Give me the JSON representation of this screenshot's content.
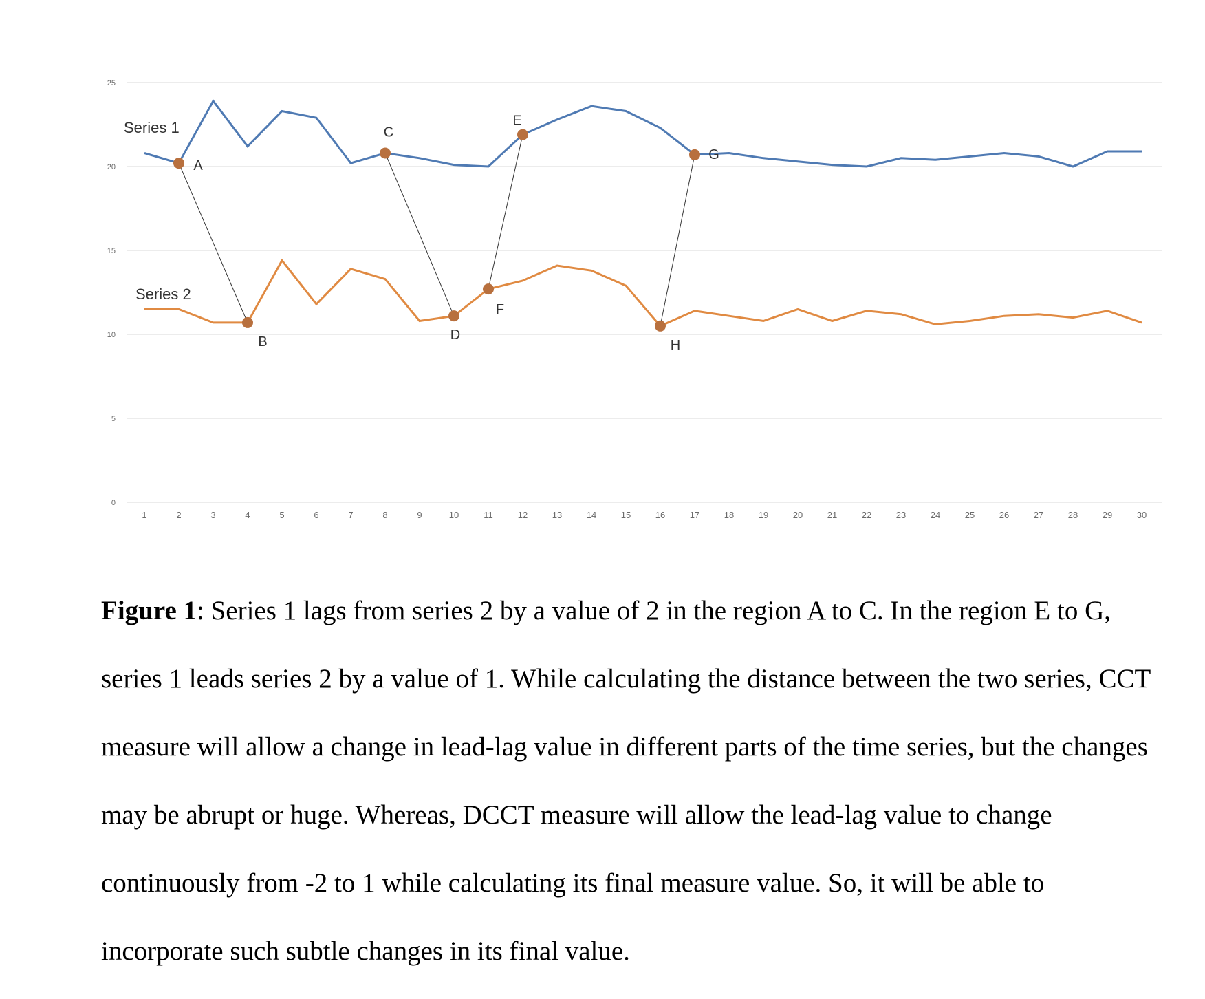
{
  "chart_data": {
    "type": "line",
    "x": [
      1,
      2,
      3,
      4,
      5,
      6,
      7,
      8,
      9,
      10,
      11,
      12,
      13,
      14,
      15,
      16,
      17,
      18,
      19,
      20,
      21,
      22,
      23,
      24,
      25,
      26,
      27,
      28,
      29,
      30
    ],
    "ylim": [
      0,
      25
    ],
    "yticks": [
      0,
      5,
      10,
      15,
      20,
      25
    ],
    "grid": true,
    "series": [
      {
        "name": "Series 1",
        "color": "#4f7ab3",
        "values": [
          20.8,
          20.2,
          23.9,
          21.2,
          23.3,
          22.9,
          20.2,
          20.8,
          20.5,
          20.1,
          20.0,
          21.9,
          22.8,
          23.6,
          23.3,
          22.3,
          20.7,
          20.8,
          20.5,
          20.3,
          20.1,
          20.0,
          20.5,
          20.4,
          20.6,
          20.8,
          20.6,
          20.0,
          20.9,
          20.9
        ]
      },
      {
        "name": "Series 2",
        "color": "#e08a42",
        "values": [
          11.5,
          11.5,
          10.7,
          10.7,
          14.4,
          11.8,
          13.9,
          13.3,
          10.8,
          11.1,
          12.7,
          13.2,
          14.1,
          13.8,
          12.9,
          10.5,
          11.4,
          11.1,
          10.8,
          11.5,
          10.8,
          11.4,
          11.2,
          10.6,
          10.8,
          11.1,
          11.2,
          11.0,
          11.4,
          10.7
        ]
      }
    ],
    "points": [
      {
        "label": "A",
        "series": 0,
        "x": 2
      },
      {
        "label": "B",
        "series": 1,
        "x": 4
      },
      {
        "label": "C",
        "series": 0,
        "x": 8
      },
      {
        "label": "D",
        "series": 1,
        "x": 10
      },
      {
        "label": "E",
        "series": 0,
        "x": 12
      },
      {
        "label": "F",
        "series": 1,
        "x": 11
      },
      {
        "label": "G",
        "series": 0,
        "x": 17
      },
      {
        "label": "H",
        "series": 1,
        "x": 16
      }
    ],
    "links": [
      [
        "A",
        "B"
      ],
      [
        "C",
        "D"
      ],
      [
        "E",
        "F"
      ],
      [
        "G",
        "H"
      ]
    ],
    "marker_color": "#b8703e"
  },
  "caption": {
    "label": "Figure 1",
    "text": ": Series 1 lags from series 2 by a value of 2 in the region A to C. In the region E to G, series 1 leads series 2 by a value of 1. While calculating the distance between the two series, CCT measure will allow a change in lead-lag value in different parts of the time series, but the changes may be abrupt or huge. Whereas, DCCT measure will allow the lead-lag value to change continuously from -2 to 1 while calculating its final measure value. So, it will be able to incorporate such subtle changes in its final value."
  }
}
